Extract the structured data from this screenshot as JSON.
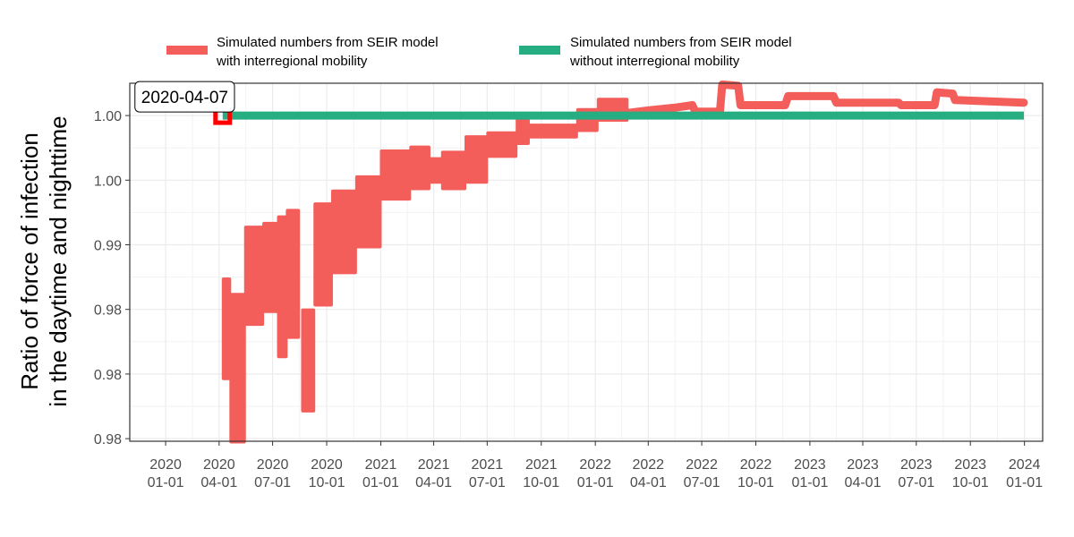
{
  "chart_data": {
    "type": "line",
    "ylabel_lines": [
      "Ratio of force of infection",
      "in the daytime and nighttime"
    ],
    "xlabel": "",
    "x_range": [
      "2019-11-01",
      "2024-02-01"
    ],
    "y_range": [
      0.9748,
      1.0025
    ],
    "grid": true,
    "legend_position": "top",
    "y_ticks": [
      {
        "value": 1.0,
        "label": "1.00"
      },
      {
        "value": 0.995,
        "label": "1.00"
      },
      {
        "value": 0.99,
        "label": "0.99"
      },
      {
        "value": 0.985,
        "label": "0.98"
      },
      {
        "value": 0.98,
        "label": "0.98"
      },
      {
        "value": 0.975,
        "label": "0.98"
      }
    ],
    "x_ticks": [
      {
        "date": "2020-01-01",
        "year": "2020",
        "md": "01-01"
      },
      {
        "date": "2020-04-01",
        "year": "2020",
        "md": "04-01"
      },
      {
        "date": "2020-07-01",
        "year": "2020",
        "md": "07-01"
      },
      {
        "date": "2020-10-01",
        "year": "2020",
        "md": "10-01"
      },
      {
        "date": "2021-01-01",
        "year": "2021",
        "md": "01-01"
      },
      {
        "date": "2021-04-01",
        "year": "2021",
        "md": "04-01"
      },
      {
        "date": "2021-07-01",
        "year": "2021",
        "md": "07-01"
      },
      {
        "date": "2021-10-01",
        "year": "2021",
        "md": "10-01"
      },
      {
        "date": "2022-01-01",
        "year": "2022",
        "md": "01-01"
      },
      {
        "date": "2022-04-01",
        "year": "2022",
        "md": "04-01"
      },
      {
        "date": "2022-07-01",
        "year": "2022",
        "md": "07-01"
      },
      {
        "date": "2022-10-01",
        "year": "2022",
        "md": "10-01"
      },
      {
        "date": "2023-01-01",
        "year": "2023",
        "md": "01-01"
      },
      {
        "date": "2023-04-01",
        "year": "2023",
        "md": "04-01"
      },
      {
        "date": "2023-07-01",
        "year": "2023",
        "md": "07-01"
      },
      {
        "date": "2023-10-01",
        "year": "2023",
        "md": "10-01"
      },
      {
        "date": "2024-01-01",
        "year": "2024",
        "md": "01-01"
      }
    ],
    "series": [
      {
        "name_lines": [
          "Simulated numbers from SEIR model",
          "with interregional mobility"
        ],
        "color": "#F35E5A",
        "bands": [
          {
            "start": "2020-04-07",
            "end": "2020-04-20",
            "low": 0.9798,
            "high": 0.9872
          },
          {
            "start": "2020-04-20",
            "end": "2020-05-15",
            "low": 0.9749,
            "high": 0.986
          },
          {
            "start": "2020-05-15",
            "end": "2020-06-15",
            "low": 0.984,
            "high": 0.9912
          },
          {
            "start": "2020-06-15",
            "end": "2020-07-10",
            "low": 0.985,
            "high": 0.9915
          },
          {
            "start": "2020-07-10",
            "end": "2020-07-25",
            "low": 0.9815,
            "high": 0.992
          },
          {
            "start": "2020-07-25",
            "end": "2020-08-15",
            "low": 0.983,
            "high": 0.9925
          },
          {
            "start": "2020-08-20",
            "end": "2020-09-10",
            "low": 0.9773,
            "high": 0.9848
          },
          {
            "start": "2020-09-10",
            "end": "2020-10-10",
            "low": 0.9855,
            "high": 0.993
          },
          {
            "start": "2020-10-10",
            "end": "2020-11-20",
            "low": 0.988,
            "high": 0.994
          },
          {
            "start": "2020-11-20",
            "end": "2021-01-01",
            "low": 0.99,
            "high": 0.9951
          },
          {
            "start": "2021-01-01",
            "end": "2021-02-20",
            "low": 0.9937,
            "high": 0.9971
          },
          {
            "start": "2021-02-20",
            "end": "2021-03-25",
            "low": 0.9945,
            "high": 0.9974
          },
          {
            "start": "2021-03-25",
            "end": "2021-04-15",
            "low": 0.995,
            "high": 0.9965
          },
          {
            "start": "2021-04-15",
            "end": "2021-05-25",
            "low": 0.9945,
            "high": 0.997
          },
          {
            "start": "2021-05-25",
            "end": "2021-07-01",
            "low": 0.995,
            "high": 0.9982
          },
          {
            "start": "2021-07-01",
            "end": "2021-08-20",
            "low": 0.997,
            "high": 0.9985
          },
          {
            "start": "2021-08-20",
            "end": "2021-09-10",
            "low": 0.998,
            "high": 0.9995
          },
          {
            "start": "2021-09-10",
            "end": "2021-12-01",
            "low": 0.9985,
            "high": 0.9991
          },
          {
            "start": "2021-12-01",
            "end": "2022-01-05",
            "low": 0.999,
            "high": 1.0003
          },
          {
            "start": "2022-01-05",
            "end": "2022-02-25",
            "low": 0.9998,
            "high": 1.0011
          }
        ],
        "line": [
          [
            "2022-02-25",
            1.0002
          ],
          [
            "2022-04-01",
            1.0004
          ],
          [
            "2022-05-15",
            1.0006
          ],
          [
            "2022-06-15",
            1.0008
          ],
          [
            "2022-06-20",
            1.0003
          ],
          [
            "2022-08-01",
            1.0003
          ],
          [
            "2022-08-05",
            1.0024
          ],
          [
            "2022-09-01",
            1.0023
          ],
          [
            "2022-09-05",
            1.0008
          ],
          [
            "2022-11-20",
            1.0008
          ],
          [
            "2022-11-25",
            1.0015
          ],
          [
            "2023-02-10",
            1.0015
          ],
          [
            "2023-02-15",
            1.001
          ],
          [
            "2023-06-01",
            1.001
          ],
          [
            "2023-06-05",
            1.0008
          ],
          [
            "2023-08-01",
            1.0008
          ],
          [
            "2023-08-05",
            1.0018
          ],
          [
            "2023-09-01",
            1.0017
          ],
          [
            "2023-09-05",
            1.0012
          ],
          [
            "2023-12-31",
            1.001
          ]
        ]
      },
      {
        "name_lines": [
          "Simulated numbers from SEIR model",
          "without interregional mobility"
        ],
        "color": "#26AD81",
        "line": [
          [
            "2020-04-07",
            1.0
          ],
          [
            "2023-12-31",
            1.0
          ]
        ]
      }
    ],
    "annotation": {
      "label": "2020-04-07",
      "date": "2020-04-07",
      "value": 1.0,
      "marker_color": "#FF0000"
    }
  }
}
